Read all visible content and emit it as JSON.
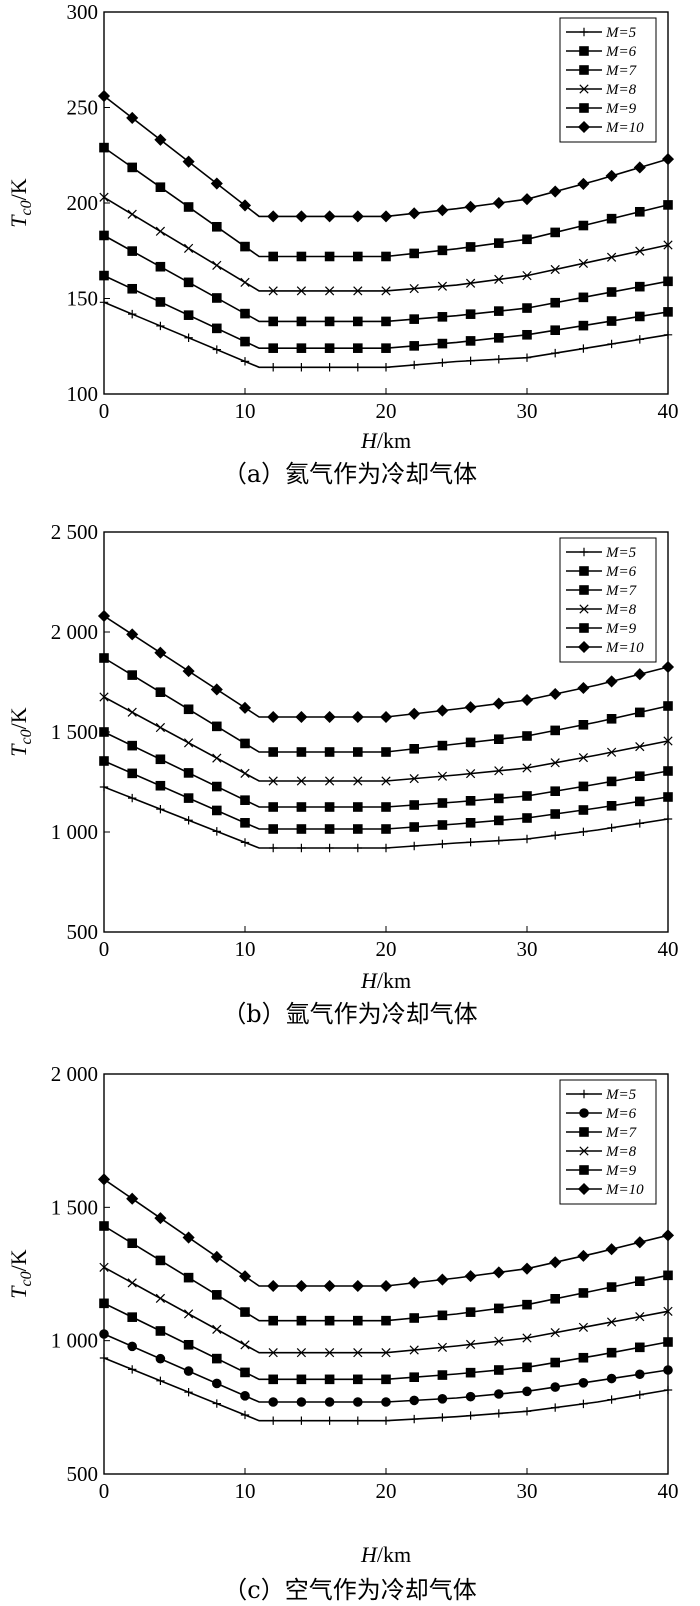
{
  "chart_data": [
    {
      "type": "line",
      "panel": "a",
      "caption": "（a）氦气作为冷却气体",
      "xlabel_var": "H",
      "xlabel_unit": "/km",
      "ylabel_var": "T",
      "ylabel_sub": "c0",
      "ylabel_unit": "/K",
      "xlim": [
        0,
        40
      ],
      "ylim": [
        100,
        300
      ],
      "xticks": [
        0,
        10,
        20,
        30,
        40
      ],
      "xtick_labels": [
        "0",
        "10",
        "20",
        "30",
        "40"
      ],
      "yticks": [
        100,
        150,
        200,
        250,
        300
      ],
      "ytick_labels": [
        "100",
        "150",
        "200",
        "250",
        "300"
      ],
      "legend_placement": "top-right",
      "x": [
        0,
        11,
        20,
        25,
        30,
        35,
        40
      ],
      "series": [
        {
          "name": "M=5",
          "marker": "plus",
          "values": [
            148,
            114,
            114,
            117,
            119,
            125,
            131
          ]
        },
        {
          "name": "M=6",
          "marker": "square",
          "values": [
            162,
            124,
            124,
            127,
            131,
            137,
            143
          ]
        },
        {
          "name": "M=7",
          "marker": "square",
          "values": [
            183,
            138,
            138,
            141,
            145,
            152,
            159
          ]
        },
        {
          "name": "M=8",
          "marker": "x",
          "values": [
            203,
            154,
            154,
            157,
            162,
            170,
            178
          ]
        },
        {
          "name": "M=9",
          "marker": "square",
          "values": [
            229,
            172,
            172,
            176,
            181,
            190,
            199
          ]
        },
        {
          "name": "M=10",
          "marker": "diamond",
          "values": [
            256,
            193,
            193,
            197,
            202,
            212,
            223
          ]
        }
      ]
    },
    {
      "type": "line",
      "panel": "b",
      "caption": "（b）氩气作为冷却气体",
      "xlabel_var": "H",
      "xlabel_unit": "/km",
      "ylabel_var": "T",
      "ylabel_sub": "c0",
      "ylabel_unit": "/K",
      "xlim": [
        0,
        40
      ],
      "ylim": [
        500,
        2500
      ],
      "xticks": [
        0,
        10,
        20,
        30,
        40
      ],
      "xtick_labels": [
        "0",
        "10",
        "20",
        "30",
        "40"
      ],
      "yticks": [
        500,
        1000,
        1500,
        2000,
        2500
      ],
      "ytick_labels": [
        "500",
        "1 000",
        "1 500",
        "2 000",
        "2 500"
      ],
      "legend_placement": "top-right",
      "x": [
        0,
        11,
        20,
        25,
        30,
        35,
        40
      ],
      "series": [
        {
          "name": "M=5",
          "marker": "plus",
          "values": [
            1225,
            920,
            920,
            945,
            965,
            1010,
            1065
          ]
        },
        {
          "name": "M=6",
          "marker": "square",
          "values": [
            1355,
            1015,
            1015,
            1040,
            1070,
            1120,
            1175
          ]
        },
        {
          "name": "M=7",
          "marker": "square",
          "values": [
            1500,
            1125,
            1125,
            1150,
            1180,
            1240,
            1305
          ]
        },
        {
          "name": "M=8",
          "marker": "x",
          "values": [
            1675,
            1255,
            1255,
            1285,
            1320,
            1385,
            1455
          ]
        },
        {
          "name": "M=9",
          "marker": "square",
          "values": [
            1870,
            1400,
            1400,
            1440,
            1480,
            1550,
            1630
          ]
        },
        {
          "name": "M=10",
          "marker": "diamond",
          "values": [
            2080,
            1575,
            1575,
            1615,
            1660,
            1735,
            1825
          ]
        }
      ]
    },
    {
      "type": "line",
      "panel": "c",
      "caption": "（c）空气作为冷却气体",
      "xlabel_var": "H",
      "xlabel_unit": "/km",
      "ylabel_var": "T",
      "ylabel_sub": "c0",
      "ylabel_unit": "/K",
      "xlim": [
        0,
        40
      ],
      "ylim": [
        500,
        2000
      ],
      "xticks": [
        0,
        10,
        20,
        30,
        40
      ],
      "xtick_labels": [
        "0",
        "10",
        "20",
        "30",
        "40"
      ],
      "yticks": [
        500,
        1000,
        1500,
        2000
      ],
      "ytick_labels": [
        "500",
        "1 000",
        "1 500",
        "2 000"
      ],
      "legend_placement": "top-right",
      "x": [
        0,
        11,
        20,
        25,
        30,
        35,
        40
      ],
      "series": [
        {
          "name": "M=5",
          "marker": "plus",
          "values": [
            935,
            700,
            700,
            715,
            735,
            770,
            815
          ]
        },
        {
          "name": "M=6",
          "marker": "circle",
          "values": [
            1025,
            770,
            770,
            785,
            810,
            850,
            890
          ]
        },
        {
          "name": "M=7",
          "marker": "square",
          "values": [
            1140,
            855,
            855,
            875,
            900,
            945,
            995
          ]
        },
        {
          "name": "M=8",
          "marker": "x",
          "values": [
            1275,
            955,
            955,
            980,
            1010,
            1060,
            1110
          ]
        },
        {
          "name": "M=9",
          "marker": "square",
          "values": [
            1430,
            1075,
            1075,
            1100,
            1135,
            1190,
            1245
          ]
        },
        {
          "name": "M=10",
          "marker": "diamond",
          "values": [
            1605,
            1205,
            1205,
            1235,
            1270,
            1330,
            1395
          ]
        }
      ]
    }
  ]
}
